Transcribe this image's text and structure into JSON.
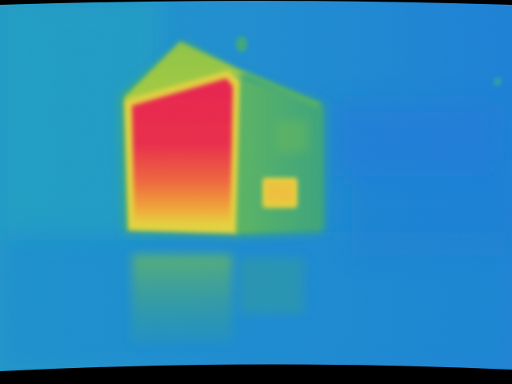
{
  "image": {
    "description_kind": "thermal-camera-frame",
    "palette": {
      "background": "#1a86d2",
      "background_light": "#1ea0c8",
      "cool": "#2b86d6",
      "warm_green": "#7fc04a",
      "warm_yellow": "#e9d93a",
      "hot_orange": "#f08a3a",
      "hot_red": "#e8214d",
      "vignette": "#000000"
    }
  }
}
